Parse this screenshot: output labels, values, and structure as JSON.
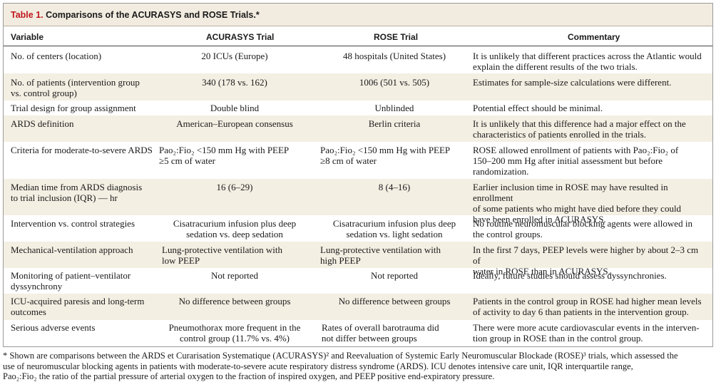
{
  "table": {
    "number": "Table 1.",
    "title_text": " Comparisons of the ACURASYS and ROSE Trials.*",
    "headers": [
      "Variable",
      "ACURASYS Trial",
      "ROSE Trial",
      "Commentary"
    ],
    "rows": [
      [
        "No. of centers (location)",
        "20 ICUs (Europe)",
        "48 hospitals (United States)",
        "It is unlikely that different practices across the Atlantic would\n    explain the different results of the two trials."
      ],
      [
        "No. of patients (intervention group\n    vs. control group)",
        "340 (178 vs. 162)",
        "1006 (501 vs. 505)",
        "Estimates for sample-size calculations were different."
      ],
      [
        "Trial design for group assignment",
        "Double blind",
        "Unblinded",
        "Potential effect should be minimal."
      ],
      [
        "ARDS definition",
        "American–European consensus",
        "Berlin criteria",
        "It is unlikely that this difference had a major effect on the\n    characteristics of patients enrolled in the trials."
      ],
      [
        "Criteria for moderate-to-severe ARDS",
        "Pao₂:Fio₂ <150 mm Hg with PEEP\n≥5 cm of water",
        "Pao₂:Fio₂ <150 mm Hg with PEEP\n≥8 cm of water",
        "ROSE allowed enrollment of patients with Pao₂:Fio₂ of\n    150–200 mm Hg after initial assessment but before\n    randomization."
      ],
      [
        "Median time from ARDS diagnosis\n    to trial inclusion (IQR) — hr",
        "16 (6–29)",
        "8 (4–16)",
        "Earlier inclusion time in ROSE may have resulted in enrollment\n    of some patients who might have died before they could\n    have been enrolled in ACURASYS."
      ],
      [
        "Intervention vs. control strategies",
        "Cisatracurium infusion plus deep\nsedation vs. deep sedation",
        "Cisatracurium infusion plus deep\nsedation vs. light sedation",
        "No routine neuromuscular blocking agents were allowed in\n    the control groups."
      ],
      [
        "Mechanical-ventilation approach",
        "Lung-protective ventilation with\nlow PEEP",
        "Lung-protective ventilation with\nhigh PEEP",
        "In the first 7 days, PEEP levels were higher by about 2–3 cm of\n    water in ROSE than in ACURASYS."
      ],
      [
        "Monitoring of patient–ventilator\n    dyssynchrony",
        "Not reported",
        "Not reported",
        "Ideally, future studies should assess dyssynchronies."
      ],
      [
        "ICU-acquired paresis and long-term\n    outcomes",
        "No difference between groups",
        "No difference between groups",
        "Patients in the control group in ROSE had higher mean levels\n    of activity to day 6 than patients in the intervention group."
      ],
      [
        "Serious adverse events",
        "Pneumothorax more frequent in the\ncontrol group (11.7% vs. 4%)",
        "Rates of overall barotrauma did\nnot differ between groups",
        "There were more acute cardiovascular events in the interven-\n    tion group in ROSE than in the control group."
      ]
    ],
    "footnote": "* Shown are comparisons between the ARDS et Curarisation Systematique (ACURASYS)² and Reevaluation of Systemic Early Neuromuscular Blockade (ROSE)³ trials, which assessed the\n   use of neuromuscular blocking agents in patients with moderate-to-severe acute respiratory distress syndrome (ARDS). ICU denotes intensive care unit, IQR interquartile range,\n   Pao₂:Fio₂ the ratio of the partial pressure of arterial oxygen to the fraction of inspired oxygen, and PEEP positive end-expiratory pressure."
  }
}
